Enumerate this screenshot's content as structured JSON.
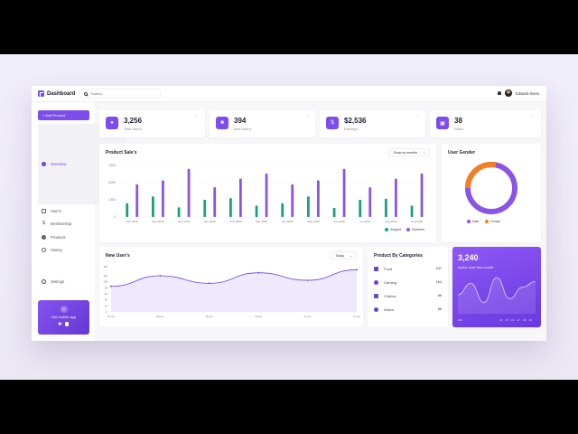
{
  "app": {
    "title": "Dashboard"
  },
  "header": {
    "search_placeholder": "Search...",
    "user_name": "Edward Kwon"
  },
  "sidebar": {
    "add_button": "+ Add Product",
    "items": [
      {
        "label": "Overview",
        "icon": "overview-icon",
        "active": true
      },
      {
        "label": "User's",
        "icon": "users-icon",
        "active": false
      },
      {
        "label": "Membership",
        "icon": "dollar-icon",
        "active": false
      },
      {
        "label": "Products",
        "icon": "products-icon",
        "active": false
      },
      {
        "label": "History",
        "icon": "history-icon",
        "active": false
      }
    ],
    "settings": "Settings",
    "mobile_app": {
      "label": "Get mobile app",
      "icon_letter": "D"
    }
  },
  "stats": [
    {
      "value": "3,256",
      "label": "Total User's",
      "icon": "users-icon"
    },
    {
      "value": "394",
      "label": "New User's",
      "icon": "user-add-icon"
    },
    {
      "value": "$2,536",
      "label": "Earning's",
      "icon": "dollar-icon"
    },
    {
      "value": "38",
      "label": "Sale's",
      "icon": "sales-icon"
    }
  ],
  "product_sales": {
    "title": "Product Sale's",
    "dropdown": "Show by months",
    "legend": [
      "Shipped",
      "Delivered"
    ]
  },
  "user_gender": {
    "title": "User Gender",
    "legend": [
      "Male",
      "Female"
    ]
  },
  "new_users": {
    "title": "New User's",
    "dropdown": "Today"
  },
  "categories": {
    "title": "Product By Categories",
    "items": [
      {
        "label": "Food",
        "value": "247",
        "icon": "food-icon"
      },
      {
        "label": "Gaming",
        "value": "164",
        "icon": "gaming-icon"
      },
      {
        "label": "Clothes",
        "value": "86",
        "icon": "clothes-icon"
      },
      {
        "label": "Watch",
        "value": "86",
        "icon": "watch-icon"
      }
    ]
  },
  "active_users": {
    "value": "3,240",
    "label": "Active user this month",
    "x_labels": [
      "202",
      "14",
      "15",
      "16",
      "17",
      "18",
      "19"
    ]
  },
  "colors": {
    "accent": "#7c4dec",
    "shipped": "#1aa17a",
    "delivered": "#8a54e6",
    "female": "#f28022",
    "male": "#8a54e6"
  },
  "chart_data": [
    {
      "type": "bar",
      "title": "Product Sale's",
      "categories": [
        "Oct 2019",
        "Nov 2019",
        "Dec 2019",
        "Jan 2020",
        "Feb 2020",
        "Mar 2020",
        "Apr 2020",
        "May 2020",
        "Jun 2020",
        "Jul 2020",
        "Aug 2020",
        "Sep 2020"
      ],
      "series": [
        {
          "name": "Shipped",
          "values": [
            1200,
            1800,
            850,
            1500,
            1650,
            1000,
            1200,
            1800,
            800,
            1500,
            1600,
            1000
          ]
        },
        {
          "name": "Delivered",
          "values": [
            2850,
            3200,
            4200,
            2600,
            3350,
            3800,
            2850,
            3200,
            4200,
            2600,
            3350,
            3800
          ]
        }
      ],
      "y_ticks": [
        0,
        1500,
        3000,
        4500
      ],
      "ylim": [
        0,
        4500
      ],
      "legend_position": "bottom-right"
    },
    {
      "type": "pie",
      "title": "User Gender",
      "categories": [
        "Male",
        "Female"
      ],
      "values": [
        72,
        28
      ]
    },
    {
      "type": "area",
      "title": "New User's",
      "x": [
        "07 am",
        "08 am",
        "09 am",
        "10 am",
        "11 am",
        "12 pm"
      ],
      "values": [
        85,
        120,
        95,
        130,
        105,
        140
      ],
      "y_ticks": [
        0,
        20,
        40,
        60,
        80,
        100,
        120,
        150
      ],
      "ylim": [
        0,
        150
      ]
    },
    {
      "type": "area",
      "title": "Active user this month",
      "x": [
        "202",
        "14",
        "15",
        "16",
        "17",
        "18",
        "19"
      ],
      "values": [
        50,
        80,
        30,
        95,
        40,
        70,
        85
      ]
    }
  ]
}
